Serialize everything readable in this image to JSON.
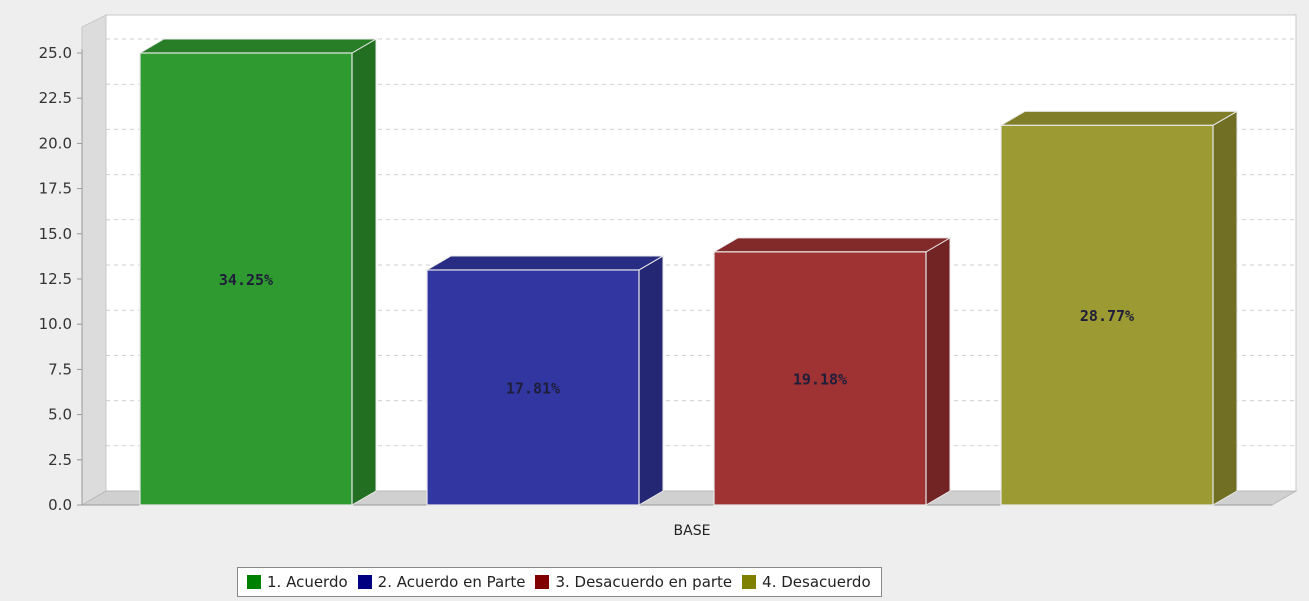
{
  "chart_data": {
    "type": "bar",
    "style": "3d",
    "categories": [
      "BASE"
    ],
    "xlabel": "BASE",
    "ylim": [
      0,
      25.0
    ],
    "yticks": [
      "0.0",
      "2.5",
      "5.0",
      "7.5",
      "10.0",
      "12.5",
      "15.0",
      "17.5",
      "20.0",
      "22.5",
      "25.0"
    ],
    "grid": true,
    "legend_position": "bottom",
    "series": [
      {
        "name": "1. Acuerdo",
        "value": 25,
        "label": "34.25%",
        "color": "#2f9a2f"
      },
      {
        "name": "2. Acuerdo en Parte",
        "value": 13,
        "label": "17.81%",
        "color": "#3236a0"
      },
      {
        "name": "3. Desacuerdo en parte",
        "value": 14,
        "label": "19.18%",
        "color": "#9f3232"
      },
      {
        "name": "4. Desacuerdo",
        "value": 21,
        "label": "28.77%",
        "color": "#9c9a32"
      }
    ]
  }
}
